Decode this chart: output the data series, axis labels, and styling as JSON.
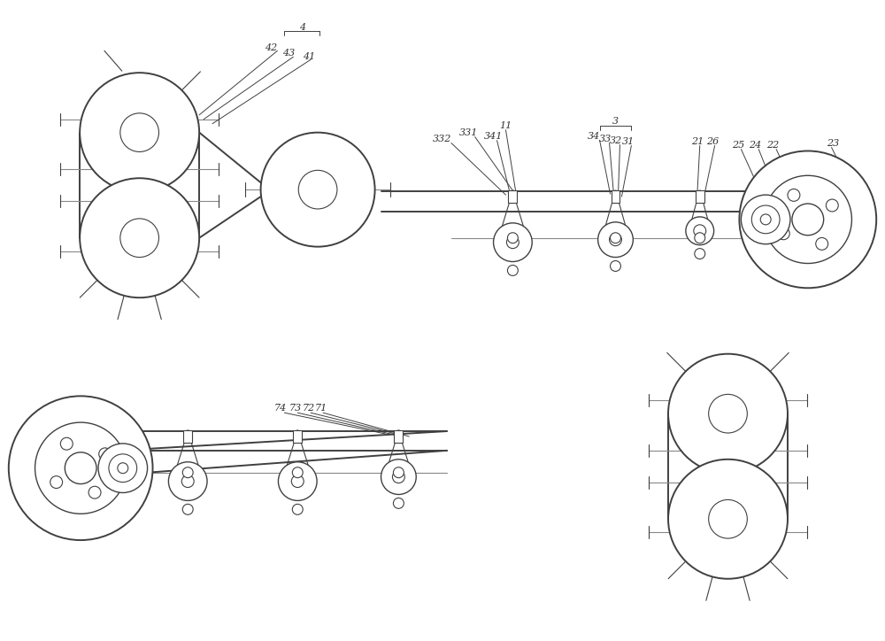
{
  "bg_color": "#ffffff",
  "line_color": "#404040",
  "fig_width": 10.0,
  "fig_height": 7.24,
  "dpi": 100
}
